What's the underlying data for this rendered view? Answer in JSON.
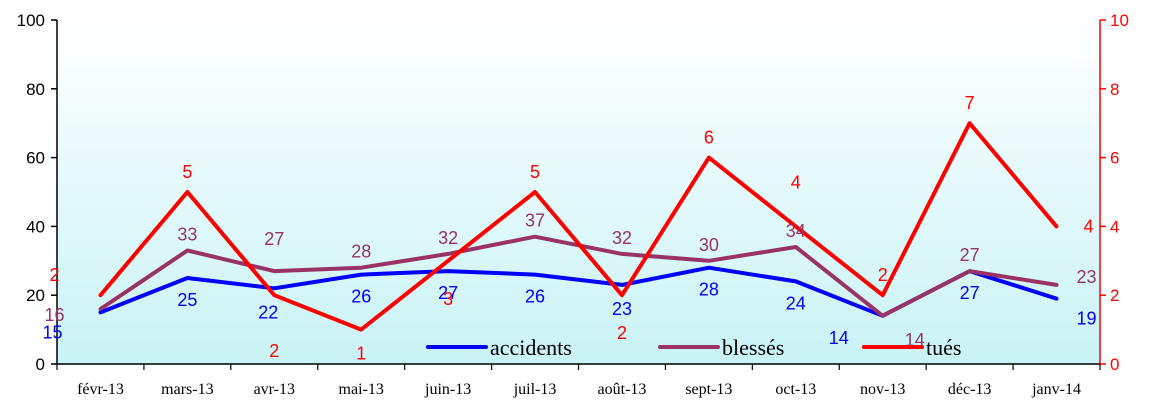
{
  "chart_data": {
    "type": "line",
    "categories": [
      "févr-13",
      "mars-13",
      "avr-13",
      "mai-13",
      "juin-13",
      "juil-13",
      "août-13",
      "sept-13",
      "oct-13",
      "nov-13",
      "déc-13",
      "janv-14"
    ],
    "series": [
      {
        "name": "accidents",
        "axis": "left",
        "color": "#0000ff",
        "values": [
          15,
          25,
          22,
          26,
          27,
          26,
          23,
          28,
          24,
          14,
          27,
          19
        ],
        "labels": [
          "15",
          "25",
          "22",
          "26",
          "27",
          "26",
          "23",
          "28",
          "24",
          "14",
          "27",
          "19"
        ]
      },
      {
        "name": "blessés",
        "axis": "left",
        "color": "#993366",
        "values": [
          16,
          33,
          27,
          28,
          32,
          37,
          32,
          30,
          34,
          14,
          27,
          23
        ],
        "labels": [
          "16",
          "33",
          "27",
          "28",
          "32",
          "37",
          "32",
          "30",
          "34",
          "14",
          "27",
          "23"
        ]
      },
      {
        "name": "tués",
        "axis": "right",
        "color": "#ff0000",
        "values": [
          2,
          5,
          2,
          1,
          3,
          5,
          2,
          6,
          4,
          2,
          7,
          4
        ],
        "labels": [
          "2",
          "5",
          "2",
          "1",
          "3",
          "5",
          "2",
          "6",
          "4",
          "2",
          "7",
          "4"
        ]
      }
    ],
    "y_left": {
      "min": 0,
      "max": 100,
      "ticks": [
        "0",
        "20",
        "40",
        "60",
        "80",
        "100"
      ],
      "tick_values": [
        0,
        20,
        40,
        60,
        80,
        100
      ]
    },
    "y_right": {
      "min": 0,
      "max": 10,
      "ticks": [
        "0",
        "2",
        "4",
        "6",
        "8",
        "10"
      ],
      "tick_values": [
        0,
        2,
        4,
        6,
        8,
        10
      ]
    },
    "legend_position": "bottom-center",
    "grid": false,
    "background": "light-cyan-gradient",
    "colors": {
      "left_axis": "#000000",
      "right_axis": "#ff0000"
    }
  }
}
